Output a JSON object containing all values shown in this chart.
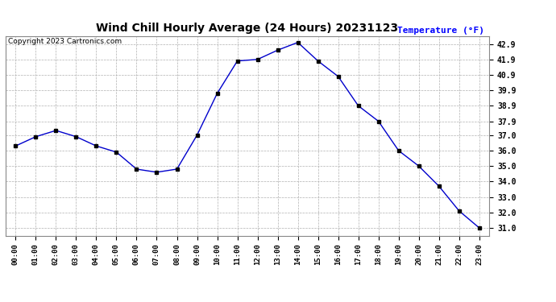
{
  "title": "Wind Chill Hourly Average (24 Hours) 20231123",
  "copyright": "Copyright 2023 Cartronics.com",
  "temp_label": "Temperature (°F)",
  "hours": [
    "00:00",
    "01:00",
    "02:00",
    "03:00",
    "04:00",
    "05:00",
    "06:00",
    "07:00",
    "08:00",
    "09:00",
    "10:00",
    "11:00",
    "12:00",
    "13:00",
    "14:00",
    "15:00",
    "16:00",
    "17:00",
    "18:00",
    "19:00",
    "20:00",
    "21:00",
    "22:00",
    "23:00"
  ],
  "values": [
    36.3,
    36.9,
    37.3,
    36.9,
    36.3,
    35.9,
    34.8,
    34.6,
    34.8,
    37.0,
    39.7,
    41.8,
    41.9,
    42.5,
    43.0,
    41.8,
    40.8,
    38.9,
    37.9,
    36.0,
    35.0,
    33.7,
    32.1,
    31.0
  ],
  "line_color": "#0000cc",
  "marker_color": "#000000",
  "background_color": "#ffffff",
  "grid_color": "#b0b0b0",
  "title_color": "#000000",
  "temp_label_color": "#0000ff",
  "copyright_color": "#000000",
  "ylim_min": 30.5,
  "ylim_max": 43.4,
  "yticks": [
    31.0,
    32.0,
    33.0,
    34.0,
    35.0,
    36.0,
    37.0,
    37.9,
    38.9,
    39.9,
    40.9,
    41.9,
    42.9
  ]
}
